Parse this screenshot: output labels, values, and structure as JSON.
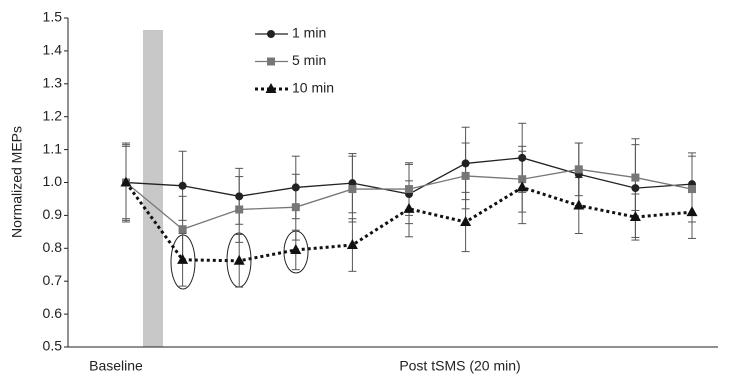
{
  "chart_data": {
    "type": "line",
    "ylabel": "Normalized MEPs",
    "xlabel": "Post tSMS (20 min)",
    "categories": [
      "Baseline",
      null,
      null,
      null,
      null,
      null,
      null,
      null,
      null,
      null,
      null
    ],
    "ylim": [
      0.5,
      1.5
    ],
    "yticks": [
      0.5,
      0.6,
      0.7,
      0.8,
      0.9,
      {
        "value": 1,
        "label": "1.0"
      },
      1.1,
      1.2,
      1.3,
      1.4,
      1.5
    ],
    "series": [
      {
        "name": "1 min",
        "color": "#222222",
        "marker": "circle",
        "linestyle": "solid",
        "values": [
          1.0,
          0.99,
          0.958,
          0.985,
          0.998,
          0.965,
          1.058,
          1.075,
          1.025,
          0.983,
          0.995
        ],
        "errors": [
          0.115,
          0.105,
          0.085,
          0.095,
          0.09,
          0.09,
          0.11,
          0.105,
          0.095,
          0.15,
          0.095
        ]
      },
      {
        "name": "5 min",
        "color": "#777777",
        "marker": "square",
        "linestyle": "solid",
        "values": [
          1.0,
          0.858,
          0.918,
          0.925,
          0.98,
          0.98,
          1.02,
          1.01,
          1.04,
          1.015,
          0.98
        ],
        "errors": [
          0.11,
          0.1,
          0.1,
          0.1,
          0.1,
          0.08,
          0.1,
          0.1,
          0.08,
          0.1,
          0.1
        ]
      },
      {
        "name": "10 min",
        "color": "#111111",
        "marker": "triangle",
        "linestyle": "dotted",
        "values": [
          1.0,
          0.765,
          0.762,
          0.795,
          0.81,
          0.92,
          0.88,
          0.985,
          0.93,
          0.895,
          0.91
        ],
        "errors": [
          0.12,
          0.08,
          0.08,
          0.06,
          0.08,
          0.085,
          0.09,
          0.11,
          0.085,
          0.07,
          0.08
        ]
      }
    ]
  }
}
